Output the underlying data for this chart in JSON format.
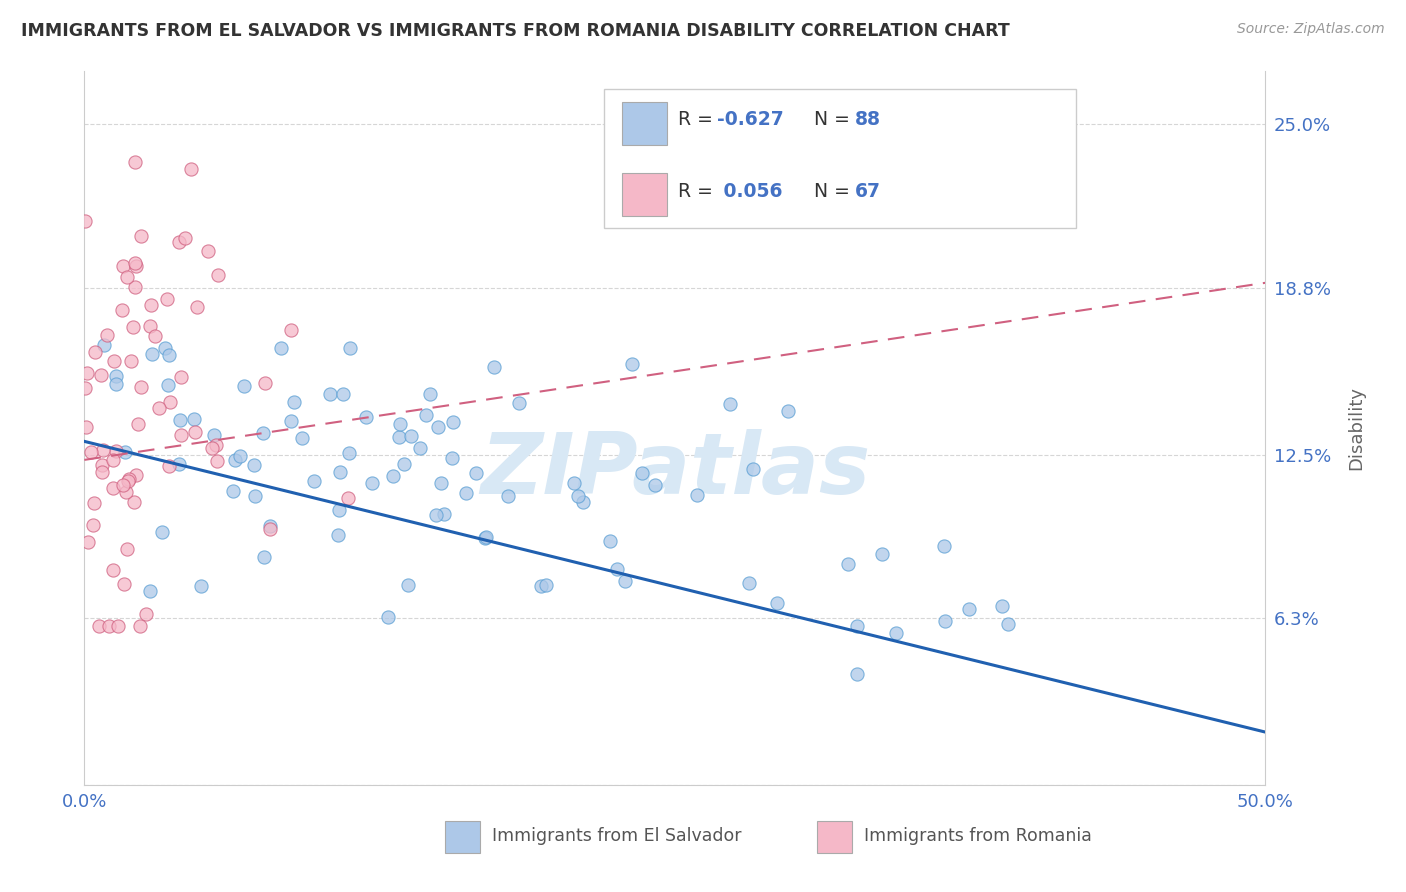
{
  "title": "IMMIGRANTS FROM EL SALVADOR VS IMMIGRANTS FROM ROMANIA DISABILITY CORRELATION CHART",
  "source": "Source: ZipAtlas.com",
  "ylabel": "Disability",
  "yticks": [
    0.0,
    0.063,
    0.125,
    0.188,
    0.25
  ],
  "ytick_labels": [
    "",
    "6.3%",
    "12.5%",
    "18.8%",
    "25.0%"
  ],
  "xlim": [
    0.0,
    0.5
  ],
  "ylim": [
    0.0,
    0.27
  ],
  "series_el_salvador": {
    "label": "Immigrants from El Salvador",
    "color": "#adc8e8",
    "edge_color": "#5a9fd4",
    "R": -0.627,
    "N": 88,
    "trend_color": "#2060b0",
    "trend_start_y": 0.13,
    "trend_end_y": 0.02
  },
  "series_romania": {
    "label": "Immigrants from Romania",
    "color": "#f5b8c8",
    "edge_color": "#d06080",
    "R": 0.056,
    "N": 67,
    "trend_color": "#d06080",
    "trend_start_y": 0.123,
    "trend_end_y": 0.19
  },
  "legend_box_colors": [
    "#adc8e8",
    "#f5b8c8"
  ],
  "watermark_text": "ZIPatlas",
  "watermark_color": "#d8e8f5",
  "background_color": "#ffffff",
  "title_color": "#333333",
  "axis_label_color": "#4472c4",
  "grid_color": "#cccccc",
  "legend_r_color": "#4472c4",
  "legend_label_color": "#333333"
}
